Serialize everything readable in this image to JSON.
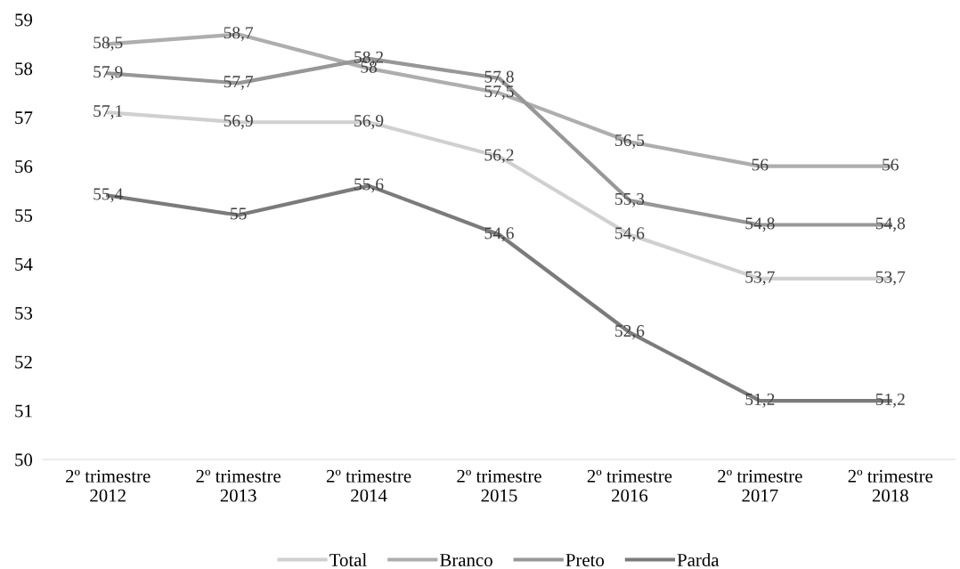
{
  "chart_data": {
    "type": "line",
    "categories": [
      "2º trimestre\n2012",
      "2º trimestre\n2013",
      "2º trimestre\n2014",
      "2º trimestre\n2015",
      "2º trimestre\n2016",
      "2º trimestre\n2017",
      "2º trimestre\n2018"
    ],
    "series": [
      {
        "name": "Total",
        "color": "#d0d0d0",
        "values": [
          57.1,
          56.9,
          56.9,
          56.2,
          54.6,
          53.7,
          53.7
        ],
        "value_labels": [
          "57,1",
          "56,9",
          "56,9",
          "56,2",
          "54,6",
          "53,7",
          "53,7"
        ]
      },
      {
        "name": "Branco",
        "color": "#aeaeae",
        "values": [
          58.5,
          58.7,
          58,
          57.5,
          56.5,
          56,
          56
        ],
        "value_labels": [
          "58,5",
          "58,7",
          "58",
          "57,5",
          "56,5",
          "56",
          "56"
        ]
      },
      {
        "name": "Preto",
        "color": "#979797",
        "values": [
          57.9,
          57.7,
          58.2,
          57.8,
          55.3,
          54.8,
          54.8
        ],
        "value_labels": [
          "57,9",
          "57,7",
          "58,2",
          "57,8",
          "55,3",
          "54,8",
          "54,8"
        ]
      },
      {
        "name": "Parda",
        "color": "#7b7b7b",
        "values": [
          55.4,
          55,
          55.6,
          54.6,
          52.6,
          51.2,
          51.2
        ],
        "value_labels": [
          "55,4",
          "55",
          "55,6",
          "54,6",
          "52,6",
          "51,2",
          "51,2"
        ]
      }
    ],
    "ylim": [
      50,
      59
    ],
    "yticks": [
      50,
      51,
      52,
      53,
      54,
      55,
      56,
      57,
      58,
      59
    ],
    "grid": false,
    "legend": "bottom",
    "marker": "none",
    "line_style": "solid"
  }
}
